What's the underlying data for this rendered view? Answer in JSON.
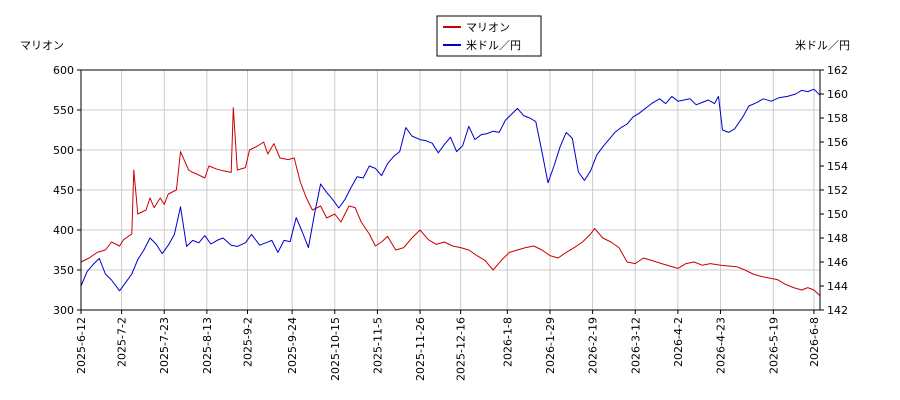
{
  "chart_data": {
    "type": "line",
    "legend": {
      "placement": "top-center",
      "entries": [
        {
          "label": "マリオン",
          "color": "#cc0000"
        },
        {
          "label": "米ドル／円",
          "color": "#0000cc"
        }
      ]
    },
    "y_left": {
      "label": "マリオン",
      "min": 300,
      "max": 600,
      "ticks": [
        300,
        350,
        400,
        450,
        500,
        550,
        600
      ],
      "color": "#cc0000"
    },
    "y_right": {
      "label": "米ドル／円",
      "min": 142,
      "max": 162,
      "ticks": [
        142,
        144,
        146,
        148,
        150,
        152,
        154,
        156,
        158,
        160,
        162
      ],
      "color": "#0000cc"
    },
    "x_range": [
      "2025-06-12",
      "2026-06-11"
    ],
    "x_ticks": [
      "2025-6-12",
      "2025-7-2",
      "2025-7-23",
      "2025-8-13",
      "2025-9-2",
      "2025-9-24",
      "2025-10-15",
      "2025-11-5",
      "2025-11-26",
      "2025-12-16",
      "2026-1-8",
      "2026-1-29",
      "2026-2-19",
      "2026-3-12",
      "2026-4-2",
      "2026-4-23",
      "2026-5-19",
      "2026-6-8"
    ],
    "grid": true,
    "series": [
      {
        "name": "マリオン",
        "axis": "left",
        "color": "#cc0000",
        "points": [
          [
            "2025-06-12",
            360
          ],
          [
            "2025-06-16",
            365
          ],
          [
            "2025-06-20",
            372
          ],
          [
            "2025-06-24",
            375
          ],
          [
            "2025-06-27",
            385
          ],
          [
            "2025-07-01",
            380
          ],
          [
            "2025-07-03",
            388
          ],
          [
            "2025-07-07",
            395
          ],
          [
            "2025-07-08",
            475
          ],
          [
            "2025-07-10",
            420
          ],
          [
            "2025-07-14",
            425
          ],
          [
            "2025-07-16",
            440
          ],
          [
            "2025-07-18",
            428
          ],
          [
            "2025-07-21",
            440
          ],
          [
            "2025-07-23",
            432
          ],
          [
            "2025-07-25",
            445
          ],
          [
            "2025-07-29",
            450
          ],
          [
            "2025-07-31",
            498
          ],
          [
            "2025-08-04",
            475
          ],
          [
            "2025-08-06",
            472
          ],
          [
            "2025-08-08",
            470
          ],
          [
            "2025-08-12",
            465
          ],
          [
            "2025-08-14",
            480
          ],
          [
            "2025-08-18",
            476
          ],
          [
            "2025-08-21",
            474
          ],
          [
            "2025-08-25",
            472
          ],
          [
            "2025-08-26",
            553
          ],
          [
            "2025-08-28",
            475
          ],
          [
            "2025-09-01",
            478
          ],
          [
            "2025-09-03",
            500
          ],
          [
            "2025-09-07",
            505
          ],
          [
            "2025-09-10",
            510
          ],
          [
            "2025-09-12",
            495
          ],
          [
            "2025-09-15",
            508
          ],
          [
            "2025-09-18",
            490
          ],
          [
            "2025-09-22",
            488
          ],
          [
            "2025-09-25",
            490
          ],
          [
            "2025-09-28",
            460
          ],
          [
            "2025-10-01",
            440
          ],
          [
            "2025-10-04",
            425
          ],
          [
            "2025-10-08",
            430
          ],
          [
            "2025-10-11",
            415
          ],
          [
            "2025-10-15",
            420
          ],
          [
            "2025-10-18",
            410
          ],
          [
            "2025-10-22",
            430
          ],
          [
            "2025-10-25",
            428
          ],
          [
            "2025-10-28",
            410
          ],
          [
            "2025-11-01",
            395
          ],
          [
            "2025-11-04",
            380
          ],
          [
            "2025-11-07",
            385
          ],
          [
            "2025-11-10",
            392
          ],
          [
            "2025-11-14",
            375
          ],
          [
            "2025-11-18",
            378
          ],
          [
            "2025-11-22",
            390
          ],
          [
            "2025-11-26",
            400
          ],
          [
            "2025-11-30",
            388
          ],
          [
            "2025-12-04",
            382
          ],
          [
            "2025-12-08",
            385
          ],
          [
            "2025-12-12",
            380
          ],
          [
            "2025-12-16",
            378
          ],
          [
            "2025-12-20",
            375
          ],
          [
            "2025-12-24",
            368
          ],
          [
            "2025-12-28",
            362
          ],
          [
            "2026-01-01",
            350
          ],
          [
            "2026-01-05",
            362
          ],
          [
            "2026-01-09",
            372
          ],
          [
            "2026-01-13",
            375
          ],
          [
            "2026-01-17",
            378
          ],
          [
            "2026-01-21",
            380
          ],
          [
            "2026-01-25",
            375
          ],
          [
            "2026-01-29",
            368
          ],
          [
            "2026-02-02",
            365
          ],
          [
            "2026-02-06",
            372
          ],
          [
            "2026-02-10",
            378
          ],
          [
            "2026-02-14",
            385
          ],
          [
            "2026-02-18",
            395
          ],
          [
            "2026-02-20",
            402
          ],
          [
            "2026-02-24",
            390
          ],
          [
            "2026-02-28",
            385
          ],
          [
            "2026-03-04",
            378
          ],
          [
            "2026-03-08",
            360
          ],
          [
            "2026-03-12",
            358
          ],
          [
            "2026-03-16",
            365
          ],
          [
            "2026-03-20",
            362
          ],
          [
            "2026-03-25",
            358
          ],
          [
            "2026-03-29",
            355
          ],
          [
            "2026-04-02",
            352
          ],
          [
            "2026-04-06",
            358
          ],
          [
            "2026-04-10",
            360
          ],
          [
            "2026-04-14",
            356
          ],
          [
            "2026-04-18",
            358
          ],
          [
            "2026-04-23",
            356
          ],
          [
            "2026-04-27",
            355
          ],
          [
            "2026-05-01",
            354
          ],
          [
            "2026-05-05",
            350
          ],
          [
            "2026-05-09",
            345
          ],
          [
            "2026-05-13",
            342
          ],
          [
            "2026-05-17",
            340
          ],
          [
            "2026-05-21",
            338
          ],
          [
            "2026-05-25",
            332
          ],
          [
            "2026-05-29",
            328
          ],
          [
            "2026-06-02",
            325
          ],
          [
            "2026-06-05",
            328
          ],
          [
            "2026-06-08",
            325
          ],
          [
            "2026-06-11",
            318
          ]
        ]
      },
      {
        "name": "米ドル／円",
        "axis": "right",
        "color": "#0000cc",
        "points": [
          [
            "2025-06-12",
            144.0
          ],
          [
            "2025-06-15",
            145.2
          ],
          [
            "2025-06-18",
            145.8
          ],
          [
            "2025-06-21",
            146.3
          ],
          [
            "2025-06-24",
            145.0
          ],
          [
            "2025-06-27",
            144.5
          ],
          [
            "2025-07-01",
            143.6
          ],
          [
            "2025-07-04",
            144.3
          ],
          [
            "2025-07-07",
            145.0
          ],
          [
            "2025-07-10",
            146.2
          ],
          [
            "2025-07-13",
            147.0
          ],
          [
            "2025-07-16",
            148.0
          ],
          [
            "2025-07-19",
            147.5
          ],
          [
            "2025-07-22",
            146.7
          ],
          [
            "2025-07-25",
            147.4
          ],
          [
            "2025-07-28",
            148.3
          ],
          [
            "2025-07-31",
            150.6
          ],
          [
            "2025-08-03",
            147.3
          ],
          [
            "2025-08-06",
            147.8
          ],
          [
            "2025-08-09",
            147.6
          ],
          [
            "2025-08-12",
            148.2
          ],
          [
            "2025-08-15",
            147.5
          ],
          [
            "2025-08-18",
            147.8
          ],
          [
            "2025-08-21",
            148.0
          ],
          [
            "2025-08-25",
            147.4
          ],
          [
            "2025-08-28",
            147.3
          ],
          [
            "2025-09-01",
            147.6
          ],
          [
            "2025-09-04",
            148.3
          ],
          [
            "2025-09-08",
            147.4
          ],
          [
            "2025-09-11",
            147.6
          ],
          [
            "2025-09-14",
            147.8
          ],
          [
            "2025-09-17",
            146.8
          ],
          [
            "2025-09-20",
            147.8
          ],
          [
            "2025-09-23",
            147.7
          ],
          [
            "2025-09-26",
            149.7
          ],
          [
            "2025-09-29",
            148.5
          ],
          [
            "2025-10-02",
            147.2
          ],
          [
            "2025-10-05",
            150.0
          ],
          [
            "2025-10-08",
            152.5
          ],
          [
            "2025-10-11",
            151.8
          ],
          [
            "2025-10-14",
            151.2
          ],
          [
            "2025-10-17",
            150.5
          ],
          [
            "2025-10-20",
            151.2
          ],
          [
            "2025-10-23",
            152.2
          ],
          [
            "2025-10-26",
            153.1
          ],
          [
            "2025-10-29",
            153.0
          ],
          [
            "2025-11-01",
            154.0
          ],
          [
            "2025-11-04",
            153.8
          ],
          [
            "2025-11-07",
            153.2
          ],
          [
            "2025-11-10",
            154.2
          ],
          [
            "2025-11-13",
            154.8
          ],
          [
            "2025-11-16",
            155.2
          ],
          [
            "2025-11-19",
            157.2
          ],
          [
            "2025-11-22",
            156.5
          ],
          [
            "2025-11-26",
            156.2
          ],
          [
            "2025-11-29",
            156.1
          ],
          [
            "2025-12-02",
            155.9
          ],
          [
            "2025-12-05",
            155.1
          ],
          [
            "2025-12-08",
            155.8
          ],
          [
            "2025-12-11",
            156.4
          ],
          [
            "2025-12-14",
            155.2
          ],
          [
            "2025-12-17",
            155.7
          ],
          [
            "2025-12-20",
            157.3
          ],
          [
            "2025-12-23",
            156.2
          ],
          [
            "2025-12-26",
            156.6
          ],
          [
            "2025-12-29",
            156.7
          ],
          [
            "2026-01-01",
            156.9
          ],
          [
            "2026-01-04",
            156.8
          ],
          [
            "2026-01-07",
            157.8
          ],
          [
            "2026-01-10",
            158.3
          ],
          [
            "2026-01-13",
            158.8
          ],
          [
            "2026-01-16",
            158.2
          ],
          [
            "2026-01-19",
            158.0
          ],
          [
            "2026-01-22",
            157.7
          ],
          [
            "2026-01-25",
            155.2
          ],
          [
            "2026-01-28",
            152.6
          ],
          [
            "2026-01-31",
            154.0
          ],
          [
            "2026-02-03",
            155.6
          ],
          [
            "2026-02-06",
            156.8
          ],
          [
            "2026-02-09",
            156.3
          ],
          [
            "2026-02-12",
            153.5
          ],
          [
            "2026-02-15",
            152.8
          ],
          [
            "2026-02-18",
            153.6
          ],
          [
            "2026-02-21",
            154.9
          ],
          [
            "2026-02-24",
            155.6
          ],
          [
            "2026-02-27",
            156.2
          ],
          [
            "2026-03-02",
            156.8
          ],
          [
            "2026-03-05",
            157.2
          ],
          [
            "2026-03-08",
            157.5
          ],
          [
            "2026-03-11",
            158.1
          ],
          [
            "2026-03-14",
            158.4
          ],
          [
            "2026-03-17",
            158.8
          ],
          [
            "2026-03-20",
            159.2
          ],
          [
            "2026-03-24",
            159.6
          ],
          [
            "2026-03-27",
            159.2
          ],
          [
            "2026-03-30",
            159.8
          ],
          [
            "2026-04-02",
            159.4
          ],
          [
            "2026-04-05",
            159.5
          ],
          [
            "2026-04-08",
            159.6
          ],
          [
            "2026-04-11",
            159.1
          ],
          [
            "2026-04-14",
            159.3
          ],
          [
            "2026-04-17",
            159.5
          ],
          [
            "2026-04-20",
            159.2
          ],
          [
            "2026-04-22",
            159.8
          ],
          [
            "2026-04-24",
            157.0
          ],
          [
            "2026-04-27",
            156.8
          ],
          [
            "2026-04-30",
            157.1
          ],
          [
            "2026-05-04",
            158.1
          ],
          [
            "2026-05-07",
            159.0
          ],
          [
            "2026-05-11",
            159.3
          ],
          [
            "2026-05-14",
            159.6
          ],
          [
            "2026-05-18",
            159.4
          ],
          [
            "2026-05-22",
            159.7
          ],
          [
            "2026-05-26",
            159.8
          ],
          [
            "2026-05-30",
            160.0
          ],
          [
            "2026-06-02",
            160.3
          ],
          [
            "2026-06-05",
            160.2
          ],
          [
            "2026-06-08",
            160.4
          ],
          [
            "2026-06-11",
            159.9
          ]
        ]
      }
    ]
  }
}
